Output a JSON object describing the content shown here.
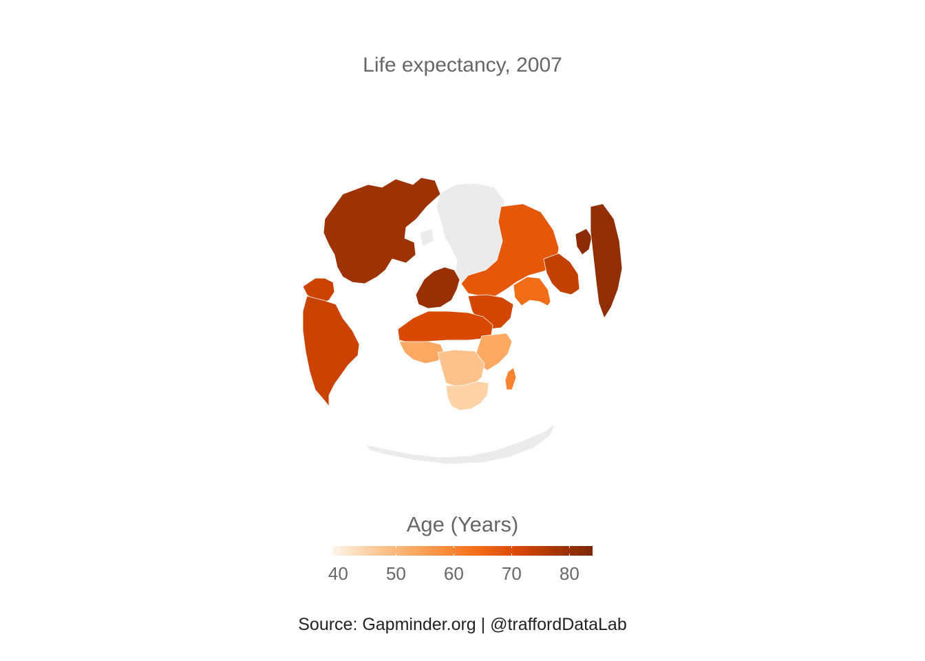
{
  "title": "Life expectancy, 2007",
  "legend": {
    "title": "Age (Years)",
    "min": 39,
    "max": 84,
    "ticks": [
      {
        "value": 40,
        "label": "40"
      },
      {
        "value": 50,
        "label": "50"
      },
      {
        "value": 60,
        "label": "60"
      },
      {
        "value": 70,
        "label": "70"
      },
      {
        "value": 80,
        "label": "80"
      }
    ],
    "colors": [
      "#fff5eb",
      "#fdd0a2",
      "#fdae6b",
      "#fd8d3c",
      "#f16913",
      "#d94801",
      "#a63603",
      "#7f2704"
    ]
  },
  "caption": "Source: Gapminder.org  |  @traffordDataLab",
  "chart_data": {
    "type": "map",
    "projection": "orthographic (tilted globe)",
    "variable": "life expectancy (years), 2007",
    "no_data_color": "#ebebeb",
    "regions": [
      {
        "name": "North America",
        "value": 79
      },
      {
        "name": "Greenland / Arctic",
        "value": null
      },
      {
        "name": "Central America & Caribbean",
        "value": 73
      },
      {
        "name": "South America",
        "value": 73
      },
      {
        "name": "Western Europe",
        "value": 80
      },
      {
        "name": "Eastern Europe & Russia",
        "value": 68
      },
      {
        "name": "Middle East",
        "value": 72
      },
      {
        "name": "South Asia",
        "value": 64
      },
      {
        "name": "East Asia",
        "value": 74
      },
      {
        "name": "Japan",
        "value": 82
      },
      {
        "name": "Australia",
        "value": 81
      },
      {
        "name": "North Africa",
        "value": 71
      },
      {
        "name": "West Africa",
        "value": 53
      },
      {
        "name": "East Africa",
        "value": 53
      },
      {
        "name": "Central Africa",
        "value": 48
      },
      {
        "name": "Southern Africa",
        "value": 45
      },
      {
        "name": "Madagascar",
        "value": 60
      },
      {
        "name": "Antarctica",
        "value": null
      }
    ]
  }
}
